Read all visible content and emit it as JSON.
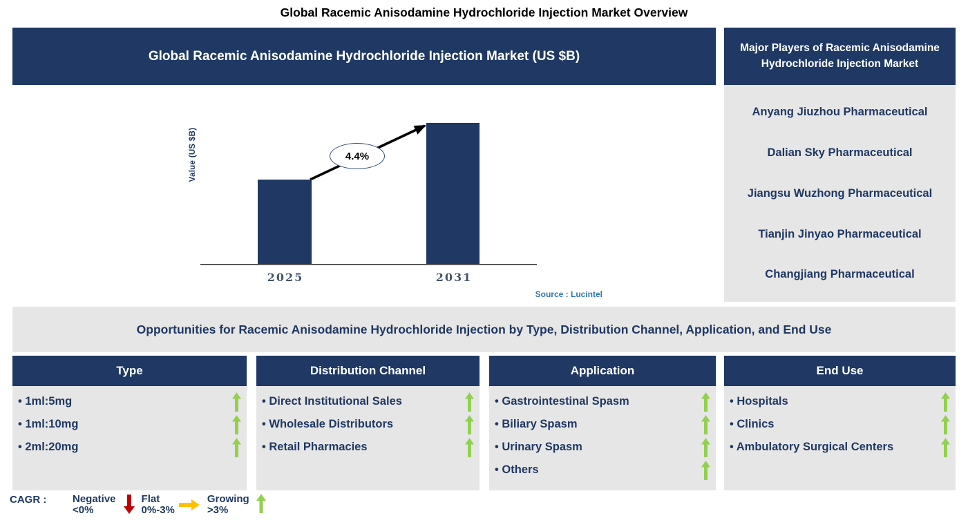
{
  "page_title": "Global Racemic Anisodamine Hydrochloride Injection Market Overview",
  "colors": {
    "navy": "#1F3864",
    "panel_gray": "#E7E6E6",
    "growing_green": "#92D050",
    "negative_red": "#C00000",
    "flat_amber": "#FFC000",
    "source_blue": "#2E75B6",
    "axis_tick_color": "#44546A"
  },
  "market_chart": {
    "header": "Global Racemic Anisodamine Hydrochloride Injection Market (US $B)",
    "source": "Source : Lucintel"
  },
  "chart_data": {
    "type": "bar",
    "title": "Global Racemic Anisodamine Hydrochloride Injection Market (US $B)",
    "categories": [
      "2025",
      "2031"
    ],
    "values_relative": [
      0.6,
      1.0
    ],
    "ylabel": "Value (US $B)",
    "xlabel": "",
    "ylim_labeled": false,
    "gridlines": false,
    "bar_color": "#1F3864",
    "cagr_label": "4.4%",
    "annotation": "CAGR 4.4% growth arrow from 2025 bar to 2031 bar"
  },
  "major_players": {
    "header": "Major Players of Racemic Anisodamine Hydrochloride Injection Market",
    "items": [
      "Anyang Jiuzhou Pharmaceutical",
      "Dalian Sky Pharmaceutical",
      "Jiangsu Wuzhong Pharmaceutical",
      "Tianjin Jinyao Pharmaceutical",
      "Changjiang Pharmaceutical"
    ]
  },
  "opportunities": {
    "title": "Opportunities for Racemic Anisodamine Hydrochloride Injection by Type, Distribution Channel, Application, and End Use"
  },
  "segments": [
    {
      "header": "Type",
      "items": [
        {
          "label": "1ml:5mg",
          "trend": "growing"
        },
        {
          "label": "1ml:10mg",
          "trend": "growing"
        },
        {
          "label": "2ml:20mg",
          "trend": "growing"
        }
      ]
    },
    {
      "header": "Distribution Channel",
      "items": [
        {
          "label": "Direct Institutional Sales",
          "trend": "growing"
        },
        {
          "label": "Wholesale Distributors",
          "trend": "growing"
        },
        {
          "label": "Retail Pharmacies",
          "trend": "growing"
        }
      ]
    },
    {
      "header": "Application",
      "items": [
        {
          "label": "Gastrointestinal Spasm",
          "trend": "growing"
        },
        {
          "label": "Biliary Spasm",
          "trend": "growing"
        },
        {
          "label": "Urinary Spasm",
          "trend": "growing"
        },
        {
          "label": "Others",
          "trend": "growing"
        }
      ]
    },
    {
      "header": "End Use",
      "items": [
        {
          "label": "Hospitals",
          "trend": "growing"
        },
        {
          "label": "Clinics",
          "trend": "growing"
        },
        {
          "label": "Ambulatory Surgical Centers",
          "trend": "growing"
        }
      ]
    }
  ],
  "cagr_legend": {
    "label": "CAGR :",
    "items": [
      {
        "name": "Negative",
        "range": "<0%",
        "icon": "down-arrow-icon",
        "color": "#C00000"
      },
      {
        "name": "Flat",
        "range": "0%-3%",
        "icon": "right-arrow-icon",
        "color": "#FFC000"
      },
      {
        "name": "Growing",
        "range": ">3%",
        "icon": "up-arrow-icon",
        "color": "#92D050"
      }
    ]
  }
}
